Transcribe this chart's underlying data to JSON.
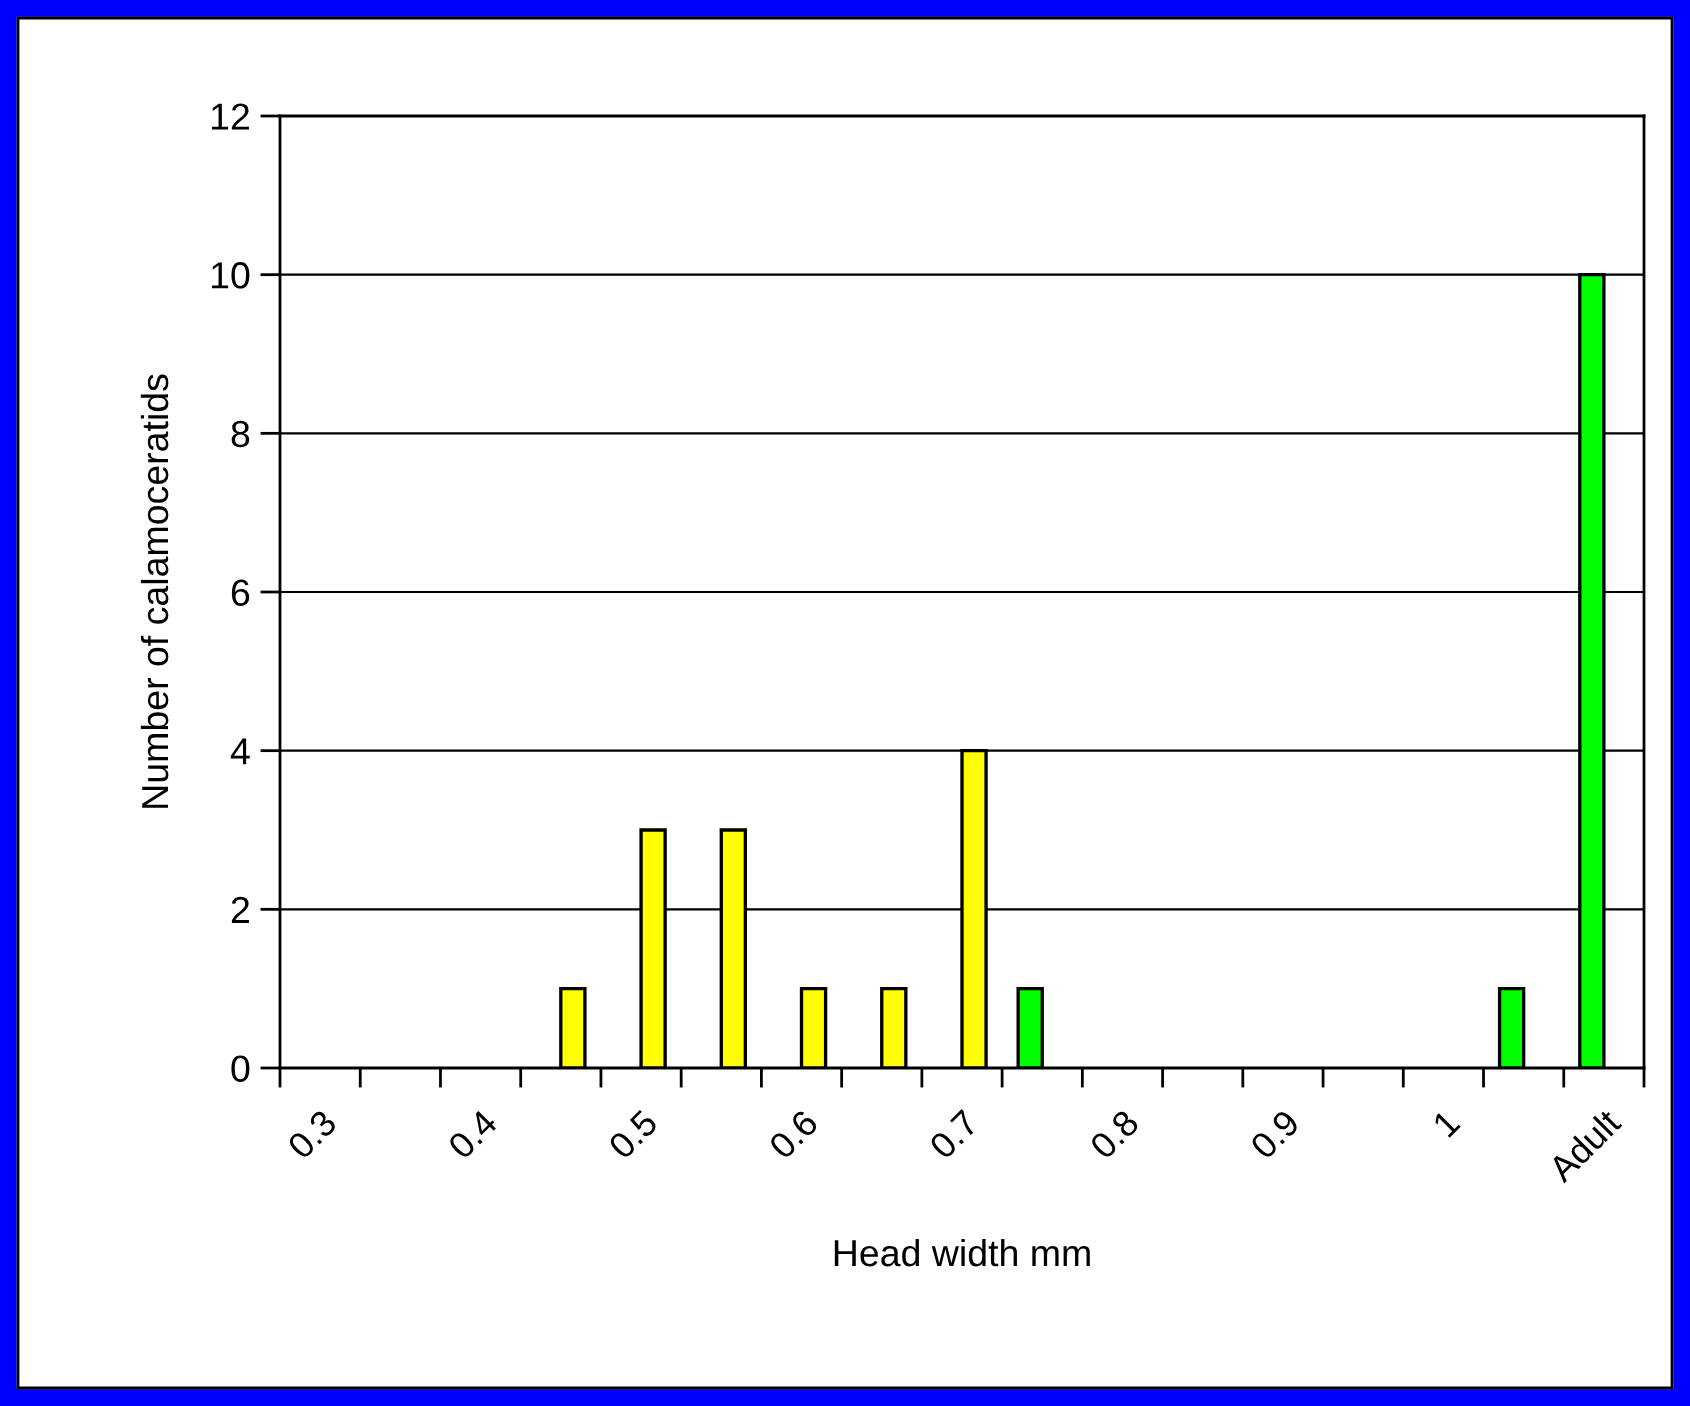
{
  "chart_data": {
    "type": "bar",
    "xlabel": "Head width mm",
    "ylabel": "Number of calamoceratids",
    "categories": [
      "0.3",
      null,
      "0.4",
      null,
      "0.5",
      null,
      "0.6",
      null,
      "0.7",
      null,
      "0.8",
      null,
      "0.9",
      null,
      "1",
      null,
      "Adult"
    ],
    "series": [
      {
        "color": "#00ff00",
        "values": [
          null,
          null,
          null,
          null,
          null,
          null,
          null,
          null,
          null,
          1,
          null,
          null,
          null,
          null,
          null,
          1,
          10
        ]
      },
      {
        "color": "#ffff00",
        "values": [
          null,
          null,
          null,
          1,
          3,
          3,
          1,
          1,
          4,
          null,
          null,
          null,
          null,
          null,
          null,
          null,
          null
        ]
      }
    ],
    "ylim": [
      0,
      12
    ],
    "yticks": [
      0,
      2,
      4,
      6,
      8,
      10,
      12
    ],
    "grid": "y",
    "legend": false
  }
}
